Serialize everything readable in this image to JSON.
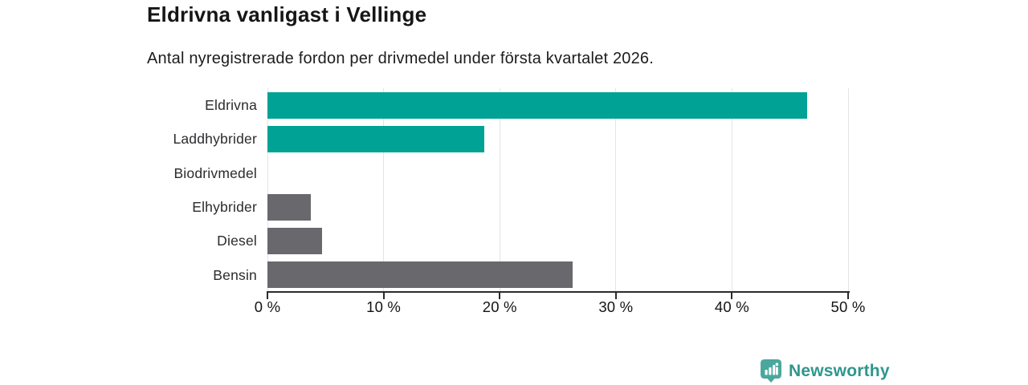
{
  "header": {
    "title": "Eldrivna vanligast i Vellinge",
    "subtitle": "Antal nyregistrerade fordon per drivmedel under första kvartalet 2026."
  },
  "chart_data": {
    "type": "bar",
    "orientation": "horizontal",
    "title": "Eldrivna vanligast i Vellinge",
    "subtitle": "Antal nyregistrerade fordon per drivmedel under första kvartalet 2026.",
    "categories": [
      "Eldrivna",
      "Laddhybrider",
      "Biodrivmedel",
      "Elhybrider",
      "Diesel",
      "Bensin"
    ],
    "values": [
      46.5,
      18.7,
      0,
      3.7,
      4.7,
      26.3
    ],
    "unit": "%",
    "bar_colors": [
      "#00a296",
      "#00a296",
      "#69686d",
      "#69686d",
      "#69686d",
      "#69686d"
    ],
    "xlim": [
      0,
      50
    ],
    "x_ticks": [
      0,
      10,
      20,
      30,
      40,
      50
    ],
    "x_tick_labels": [
      "0 %",
      "10 %",
      "20 %",
      "30 %",
      "40 %",
      "50 %"
    ],
    "grid": "vertical-gridlines-on",
    "legend": "none",
    "colors": {
      "highlight_series": "#00a296",
      "default_series": "#69686d",
      "gridline": "#e4e4e4",
      "axis": "#2b2b2b"
    }
  },
  "footer": {
    "brand": "Newsworthy",
    "logo_icon": "newsworthy-bar-chart-bubble-icon",
    "icon_color": "#4ba79e",
    "text_color": "#2f968d"
  }
}
